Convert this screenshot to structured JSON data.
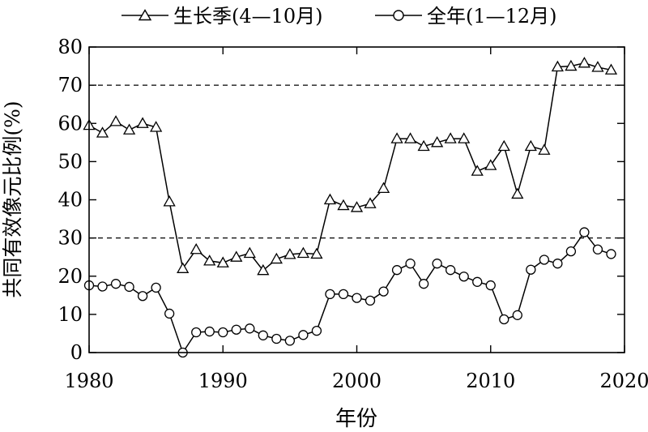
{
  "chart_data": {
    "type": "line",
    "xlabel": "年份",
    "ylabel": "共同有效像元比例(%)",
    "xlim": [
      1980,
      2020
    ],
    "ylim": [
      0,
      80
    ],
    "xticks": [
      1980,
      1990,
      2000,
      2010,
      2020
    ],
    "yticks": [
      0,
      10,
      20,
      30,
      40,
      50,
      60,
      70,
      80
    ],
    "reference_lines": [
      70,
      30
    ],
    "legend_position": "top",
    "series": [
      {
        "name": "生长季(4—10月)",
        "marker": "triangle",
        "x": [
          1980,
          1981,
          1982,
          1983,
          1984,
          1985,
          1986,
          1987,
          1988,
          1989,
          1990,
          1991,
          1992,
          1993,
          1994,
          1995,
          1996,
          1997,
          1998,
          1999,
          2000,
          2001,
          2002,
          2003,
          2004,
          2005,
          2006,
          2007,
          2008,
          2009,
          2010,
          2011,
          2012,
          2013,
          2014,
          2015,
          2016,
          2017,
          2018,
          2019
        ],
        "y": [
          59.5,
          57.5,
          60.5,
          58.3,
          60,
          59,
          39.5,
          22,
          27,
          24,
          23.5,
          25,
          26,
          21.5,
          24.5,
          25.7,
          26,
          25.8,
          40,
          38.5,
          38,
          39,
          43,
          56,
          56,
          54,
          55,
          56,
          56,
          47.5,
          49,
          54,
          41.5,
          54,
          53,
          74.8,
          75,
          75.8,
          74.7,
          74
        ]
      },
      {
        "name": "全年(1—12月)",
        "marker": "circle",
        "x": [
          1980,
          1981,
          1982,
          1983,
          1984,
          1985,
          1986,
          1987,
          1988,
          1989,
          1990,
          1991,
          1992,
          1993,
          1994,
          1995,
          1996,
          1997,
          1998,
          1999,
          2000,
          2001,
          2002,
          2003,
          2004,
          2005,
          2006,
          2007,
          2008,
          2009,
          2010,
          2011,
          2012,
          2013,
          2014,
          2015,
          2016,
          2017,
          2018,
          2019
        ],
        "y": [
          17.6,
          17.3,
          18,
          17.2,
          14.8,
          17,
          10.2,
          0,
          5.3,
          5.5,
          5.3,
          6,
          6.3,
          4.5,
          3.6,
          3.1,
          4.6,
          5.7,
          15.3,
          15.3,
          14.3,
          13.6,
          16,
          21.6,
          23.3,
          18,
          23.3,
          21.6,
          19.9,
          18.5,
          17.6,
          8.7,
          9.8,
          21.7,
          24.3,
          23.3,
          26.5,
          31.5,
          27,
          25.8
        ]
      }
    ]
  }
}
